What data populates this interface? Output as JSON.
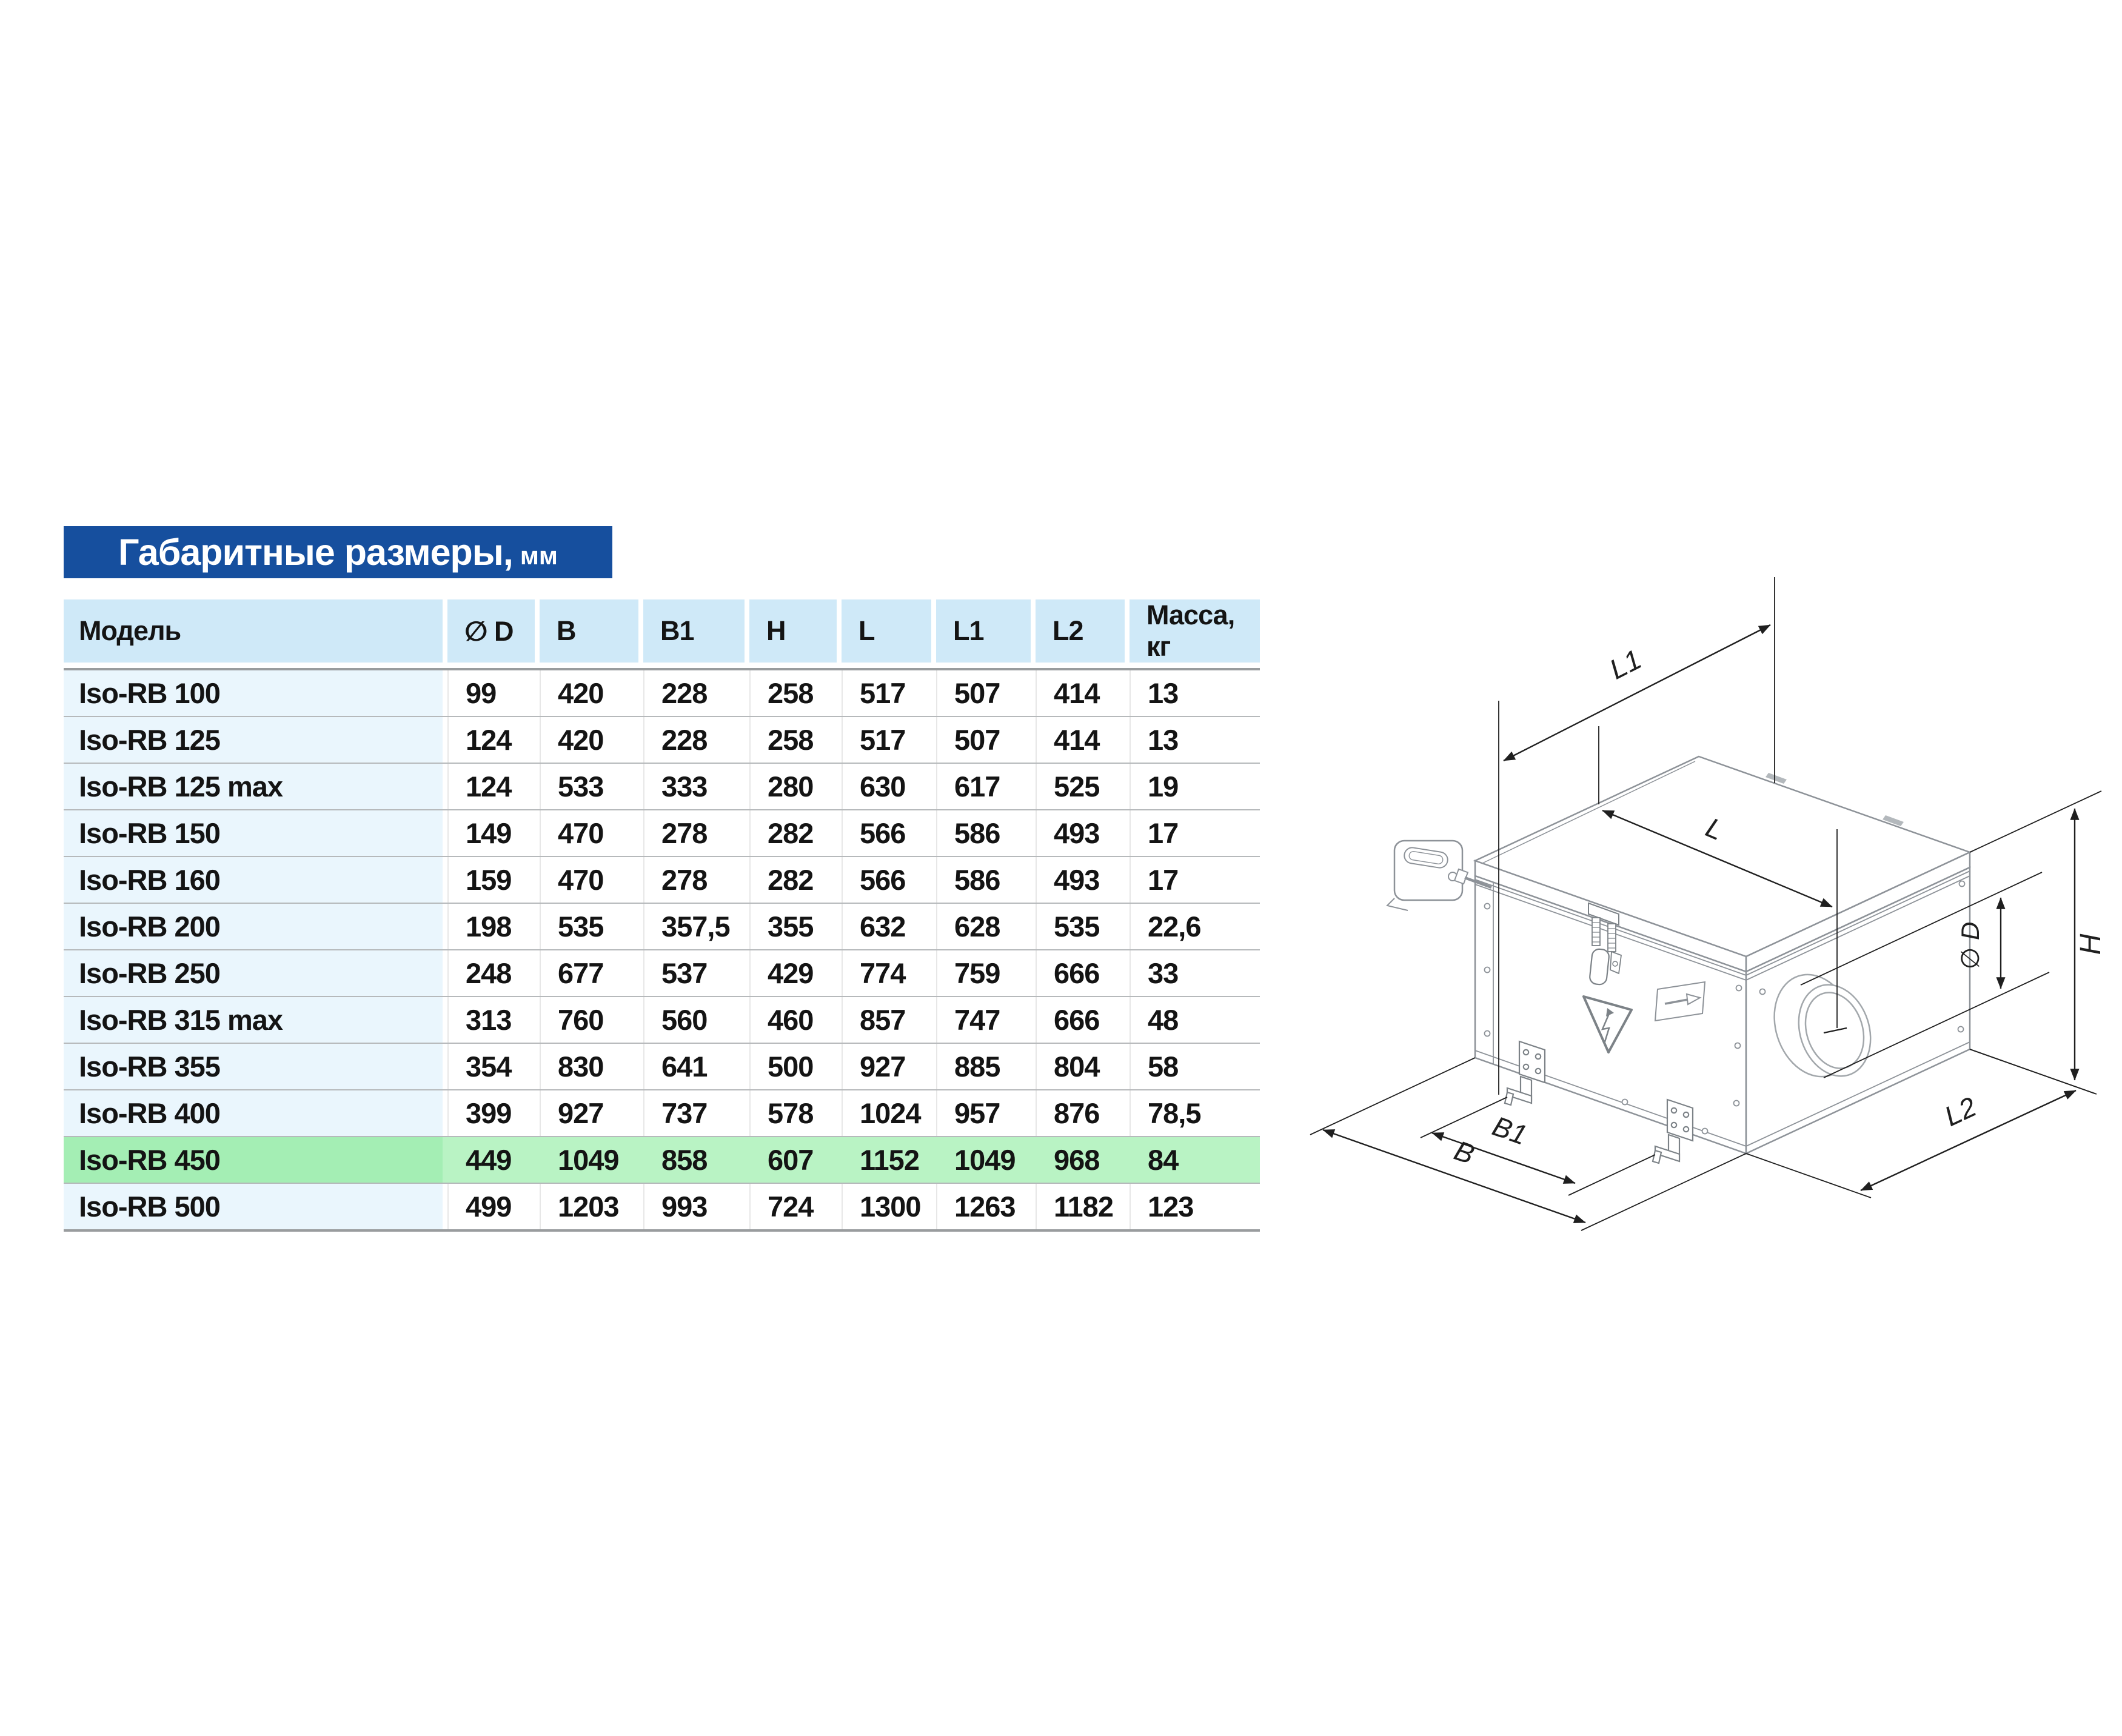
{
  "title": {
    "text": "Габаритные размеры,",
    "unit": "мм"
  },
  "table": {
    "columns": [
      "Модель",
      "∅ D",
      "B",
      "B1",
      "H",
      "L",
      "L1",
      "L2",
      "Масса, кг"
    ],
    "rows": [
      {
        "model": "Iso-RB 100",
        "values": [
          "99",
          "420",
          "228",
          "258",
          "517",
          "507",
          "414",
          "13"
        ],
        "highlight": false
      },
      {
        "model": "Iso-RB 125",
        "values": [
          "124",
          "420",
          "228",
          "258",
          "517",
          "507",
          "414",
          "13"
        ],
        "highlight": false
      },
      {
        "model": "Iso-RB 125 max",
        "values": [
          "124",
          "533",
          "333",
          "280",
          "630",
          "617",
          "525",
          "19"
        ],
        "highlight": false
      },
      {
        "model": "Iso-RB 150",
        "values": [
          "149",
          "470",
          "278",
          "282",
          "566",
          "586",
          "493",
          "17"
        ],
        "highlight": false
      },
      {
        "model": "Iso-RB 160",
        "values": [
          "159",
          "470",
          "278",
          "282",
          "566",
          "586",
          "493",
          "17"
        ],
        "highlight": false
      },
      {
        "model": "Iso-RB 200",
        "values": [
          "198",
          "535",
          "357,5",
          "355",
          "632",
          "628",
          "535",
          "22,6"
        ],
        "highlight": false
      },
      {
        "model": "Iso-RB 250",
        "values": [
          "248",
          "677",
          "537",
          "429",
          "774",
          "759",
          "666",
          "33"
        ],
        "highlight": false
      },
      {
        "model": "Iso-RB 315 max",
        "values": [
          "313",
          "760",
          "560",
          "460",
          "857",
          "747",
          "666",
          "48"
        ],
        "highlight": false
      },
      {
        "model": "Iso-RB 355",
        "values": [
          "354",
          "830",
          "641",
          "500",
          "927",
          "885",
          "804",
          "58"
        ],
        "highlight": false
      },
      {
        "model": "Iso-RB 400",
        "values": [
          "399",
          "927",
          "737",
          "578",
          "1024",
          "957",
          "876",
          "78,5"
        ],
        "highlight": false
      },
      {
        "model": "Iso-RB 450",
        "values": [
          "449",
          "1049",
          "858",
          "607",
          "1152",
          "1049",
          "968",
          "84"
        ],
        "highlight": true
      },
      {
        "model": "Iso-RB 500",
        "values": [
          "499",
          "1203",
          "993",
          "724",
          "1300",
          "1263",
          "1182",
          "123"
        ],
        "highlight": false
      }
    ]
  },
  "diagram": {
    "labels": {
      "l1": "L1",
      "l": "L",
      "h": "H",
      "d": "∅ D",
      "b1": "B1",
      "b": "B",
      "l2": "L2"
    }
  },
  "colors": {
    "title_bg": "#164f9e",
    "header_bg": "#cfe9f8",
    "model_col_bg": "#eaf6fd",
    "highlight_row": "#b9f3c4",
    "highlight_model": "#a4eeb4"
  }
}
